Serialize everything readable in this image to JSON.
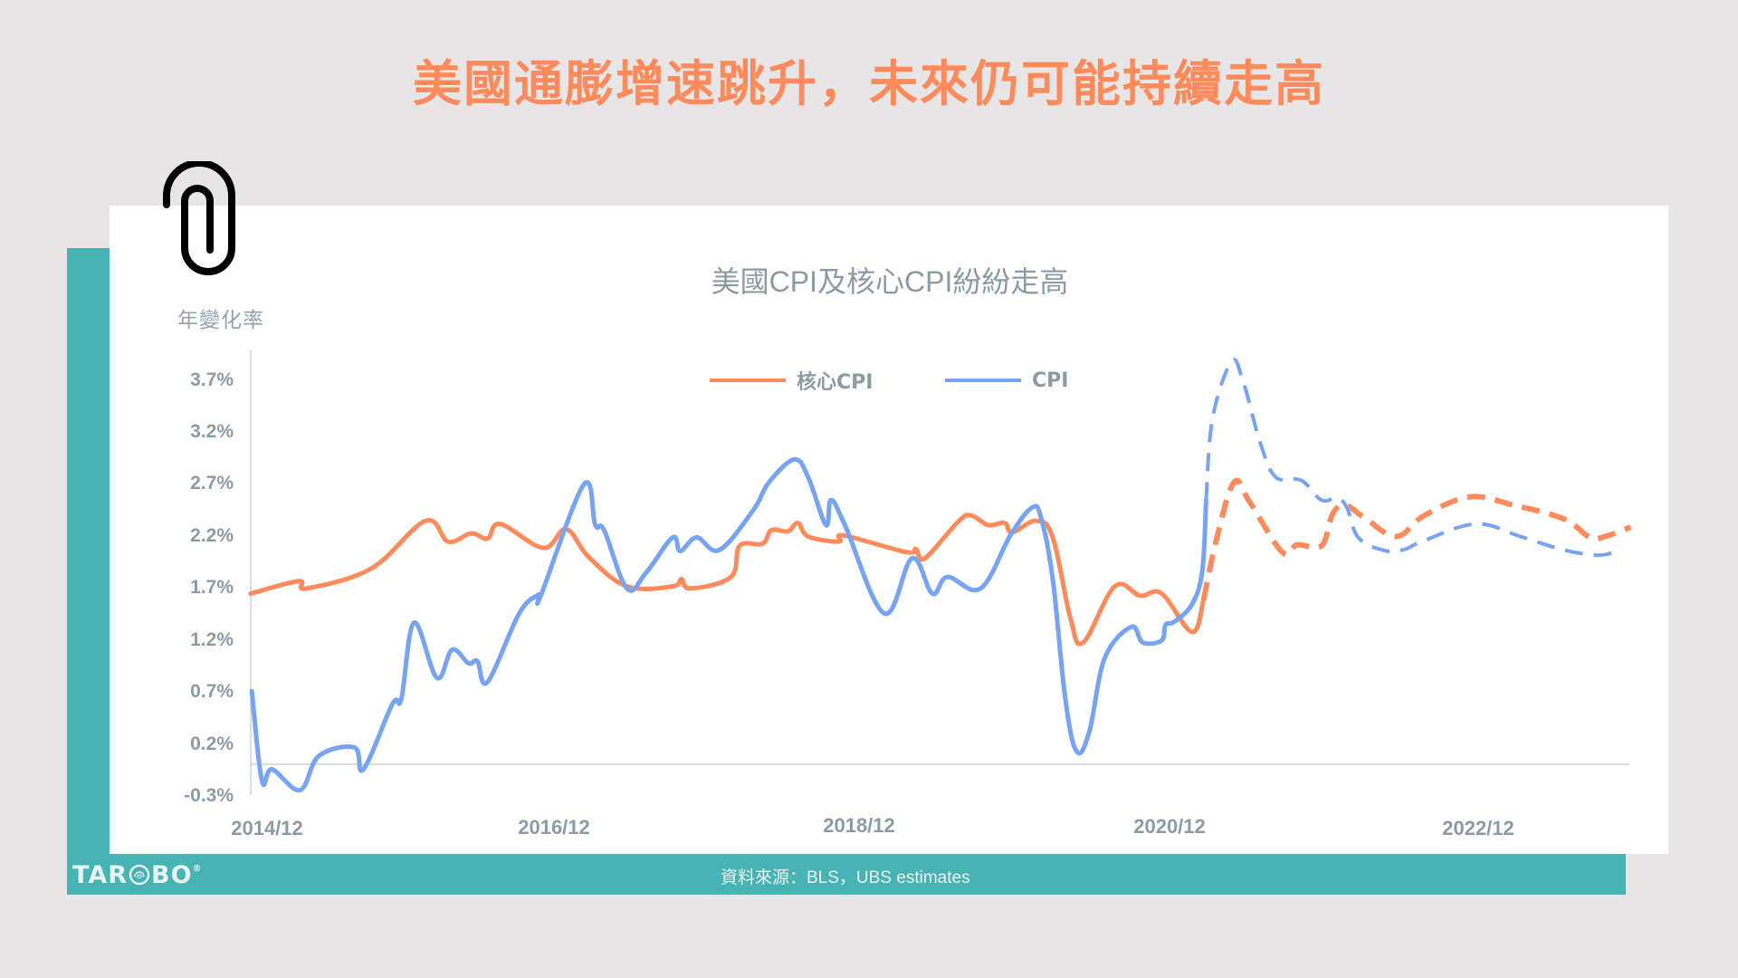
{
  "header": {
    "title": "美國通膨增速跳升，未來仍可能持續走高"
  },
  "chart_card": {
    "y_unit_label": "年變化率",
    "title": "美國CPI及核心CPI紛紛走高",
    "source": "資料來源：BLS，UBS estimates"
  },
  "branding": {
    "logo_text_left": "TAR",
    "logo_text_right": "BO",
    "logo_mark": "®"
  },
  "legend": [
    {
      "label": "核心CPI",
      "color": "#FF8A5B"
    },
    {
      "label": "CPI",
      "color": "#77A3F5"
    }
  ],
  "colors": {
    "accent_orange": "#FF8A5B",
    "teal": "#48B3B3",
    "blue": "#77A3F5",
    "axis_text": "#8C9BA3",
    "background": "#E7E5E6"
  },
  "chart_data": {
    "type": "line",
    "title": "美國CPI及核心CPI紛紛走高",
    "xlabel": "",
    "ylabel": "年變化率",
    "ylim": [
      -0.3,
      3.9
    ],
    "yticks": [
      "3.7%",
      "3.2%",
      "2.7%",
      "2.2%",
      "1.7%",
      "1.2%",
      "0.7%",
      "0.2%",
      "-0.3%"
    ],
    "ytick_values": [
      3.7,
      3.2,
      2.7,
      2.2,
      1.7,
      1.2,
      0.7,
      0.2,
      -0.3
    ],
    "xticks": [
      "2014/12",
      "2016/12",
      "2018/12",
      "2020/12",
      "2022/12"
    ],
    "xtick_month_index": [
      0,
      24,
      48,
      72,
      96
    ],
    "x_unit": "months since 2014/12",
    "grid": false,
    "legend_position": "top",
    "forecast_start_month_index": 74,
    "annotations": [
      "dashed segments = UBS estimates (forecast)"
    ],
    "series": [
      {
        "name": "核心CPI",
        "color": "#FF8A5B",
        "actual": [
          [
            -1.3,
            1.65
          ],
          [
            2.5,
            1.77
          ],
          [
            3.1,
            1.7
          ],
          [
            8.2,
            1.89
          ],
          [
            12.5,
            2.35
          ],
          [
            14.3,
            2.15
          ],
          [
            16.1,
            2.23
          ],
          [
            17.4,
            2.18
          ],
          [
            18.4,
            2.32
          ],
          [
            21.8,
            2.09
          ],
          [
            23.6,
            2.27
          ],
          [
            25.4,
            2.0
          ],
          [
            28.4,
            1.72
          ],
          [
            32.0,
            1.72
          ],
          [
            32.7,
            1.79
          ],
          [
            33.4,
            1.7
          ],
          [
            36.6,
            1.81
          ],
          [
            37.3,
            2.11
          ],
          [
            39.1,
            2.13
          ],
          [
            39.8,
            2.26
          ],
          [
            41.1,
            2.25
          ],
          [
            41.9,
            2.33
          ],
          [
            42.7,
            2.2
          ],
          [
            45.1,
            2.15
          ],
          [
            45.5,
            2.21
          ],
          [
            50.4,
            2.05
          ],
          [
            51.2,
            2.08
          ],
          [
            51.9,
            1.99
          ],
          [
            54.6,
            2.35
          ],
          [
            55.6,
            2.4
          ],
          [
            56.9,
            2.31
          ],
          [
            58.2,
            2.33
          ],
          [
            58.8,
            2.24
          ],
          [
            60.7,
            2.35
          ],
          [
            62.0,
            2.19
          ],
          [
            63.4,
            1.41
          ],
          [
            64.4,
            1.18
          ],
          [
            66.9,
            1.72
          ],
          [
            68.9,
            1.63
          ],
          [
            70.6,
            1.65
          ],
          [
            73.0,
            1.28
          ],
          [
            73.9,
            1.59
          ]
        ],
        "forecast": [
          [
            73.9,
            1.59
          ],
          [
            74.9,
            2.16
          ],
          [
            76.3,
            2.72
          ],
          [
            77.5,
            2.54
          ],
          [
            80.1,
            2.05
          ],
          [
            81.3,
            2.12
          ],
          [
            83.2,
            2.11
          ],
          [
            84.1,
            2.42
          ],
          [
            85.1,
            2.5
          ],
          [
            86.6,
            2.38
          ],
          [
            89.1,
            2.2
          ],
          [
            91.3,
            2.4
          ],
          [
            94.9,
            2.58
          ],
          [
            98.4,
            2.5
          ],
          [
            102.3,
            2.37
          ],
          [
            104.4,
            2.19
          ],
          [
            105.6,
            2.2
          ],
          [
            107.6,
            2.29
          ]
        ]
      },
      {
        "name": "CPI",
        "color": "#77A3F5",
        "actual": [
          [
            -1.2,
            0.71
          ],
          [
            -0.4,
            -0.15
          ],
          [
            0.4,
            -0.04
          ],
          [
            2.6,
            -0.24
          ],
          [
            4.1,
            0.09
          ],
          [
            6.9,
            0.17
          ],
          [
            7.6,
            -0.04
          ],
          [
            9.9,
            0.59
          ],
          [
            10.6,
            0.64
          ],
          [
            11.6,
            1.37
          ],
          [
            13.4,
            0.84
          ],
          [
            14.6,
            1.11
          ],
          [
            15.9,
            0.98
          ],
          [
            16.6,
            1.0
          ],
          [
            17.4,
            0.8
          ],
          [
            19.9,
            1.46
          ],
          [
            21.4,
            1.64
          ],
          [
            21.6,
            1.63
          ],
          [
            25.0,
            2.7
          ],
          [
            25.9,
            2.31
          ],
          [
            26.6,
            2.26
          ],
          [
            28.4,
            1.7
          ],
          [
            29.9,
            1.85
          ],
          [
            32.0,
            2.19
          ],
          [
            32.6,
            2.06
          ],
          [
            33.9,
            2.19
          ],
          [
            35.7,
            2.07
          ],
          [
            38.4,
            2.46
          ],
          [
            39.6,
            2.72
          ],
          [
            41.6,
            2.94
          ],
          [
            42.7,
            2.77
          ],
          [
            44.1,
            2.31
          ],
          [
            44.5,
            2.55
          ],
          [
            45.6,
            2.31
          ],
          [
            48.7,
            1.46
          ],
          [
            50.9,
            1.99
          ],
          [
            52.5,
            1.65
          ],
          [
            53.7,
            1.81
          ],
          [
            56.3,
            1.7
          ],
          [
            58.7,
            2.22
          ],
          [
            60.4,
            2.48
          ],
          [
            61.1,
            2.37
          ],
          [
            62.0,
            1.79
          ],
          [
            63.0,
            0.63
          ],
          [
            63.9,
            0.13
          ],
          [
            64.9,
            0.33
          ],
          [
            66.1,
            1.03
          ],
          [
            68.2,
            1.33
          ],
          [
            69.1,
            1.18
          ],
          [
            70.6,
            1.2
          ],
          [
            70.9,
            1.35
          ],
          [
            71.6,
            1.38
          ],
          [
            73.0,
            1.55
          ],
          [
            73.8,
            1.87
          ],
          [
            74.1,
            2.55
          ]
        ],
        "forecast": [
          [
            74.1,
            2.55
          ],
          [
            74.6,
            3.33
          ],
          [
            76.1,
            3.88
          ],
          [
            77.0,
            3.7
          ],
          [
            78.4,
            3.09
          ],
          [
            79.6,
            2.77
          ],
          [
            81.6,
            2.74
          ],
          [
            83.2,
            2.55
          ],
          [
            84.4,
            2.57
          ],
          [
            85.2,
            2.48
          ],
          [
            86.1,
            2.19
          ],
          [
            88.0,
            2.07
          ],
          [
            89.6,
            2.07
          ],
          [
            91.3,
            2.16
          ],
          [
            95.4,
            2.32
          ],
          [
            98.9,
            2.2
          ],
          [
            102.3,
            2.07
          ],
          [
            104.9,
            2.02
          ],
          [
            106.1,
            2.04
          ]
        ]
      }
    ]
  }
}
